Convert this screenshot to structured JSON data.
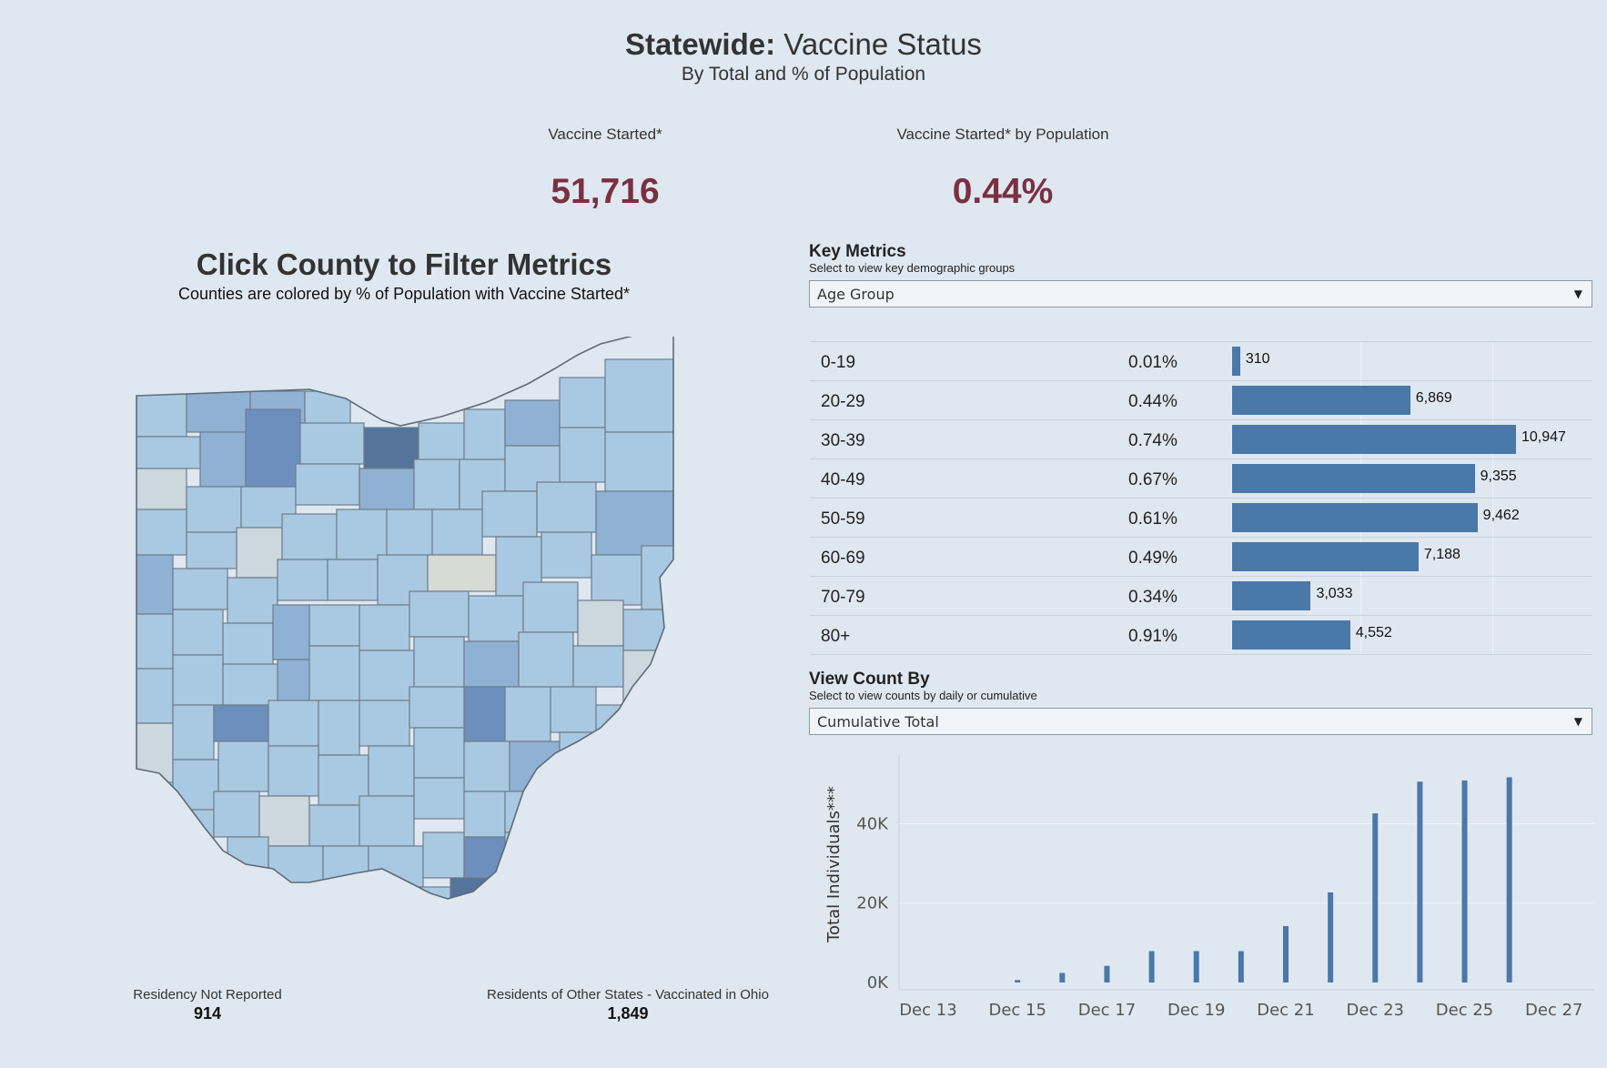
{
  "header": {
    "title_bold": "Statewide:",
    "title_rest": " Vaccine Status",
    "subtitle": "By Total and % of Population"
  },
  "kpis": {
    "started_label": "Vaccine Started*",
    "started_value": "51,716",
    "pop_label": "Vaccine Started* by Population",
    "pop_value": "0.44%"
  },
  "map": {
    "title": "Click County to Filter Metrics",
    "subtitle": "Counties are colored by % of Population with Vaccine Started*",
    "colors": {
      "light": "#a9c9e2",
      "mid": "#8fb1d4",
      "dark": "#6c8fbd",
      "darker": "#56739c",
      "gray": "#ccd7de",
      "pale": "#d8dad6"
    }
  },
  "footer": {
    "residency_label": "Residency Not Reported",
    "residency_value": "914",
    "other_label": "Residents of Other States - Vaccinated in Ohio",
    "other_value": "1,849"
  },
  "key_metrics": {
    "heading": "Key Metrics",
    "subheading": "Select to view key demographic groups",
    "dropdown_value": "Age Group",
    "rows": [
      {
        "label": "0-19",
        "pct": "0.01%",
        "count": 310,
        "count_label": "310"
      },
      {
        "label": "20-29",
        "pct": "0.44%",
        "count": 6869,
        "count_label": "6,869"
      },
      {
        "label": "30-39",
        "pct": "0.74%",
        "count": 10947,
        "count_label": "10,947"
      },
      {
        "label": "40-49",
        "pct": "0.67%",
        "count": 9355,
        "count_label": "9,355"
      },
      {
        "label": "50-59",
        "pct": "0.61%",
        "count": 9462,
        "count_label": "9,462"
      },
      {
        "label": "60-69",
        "pct": "0.49%",
        "count": 7188,
        "count_label": "7,188"
      },
      {
        "label": "70-79",
        "pct": "0.34%",
        "count": 3033,
        "count_label": "3,033"
      },
      {
        "label": "80+",
        "pct": "0.91%",
        "count": 4552,
        "count_label": "4,552"
      }
    ]
  },
  "view_count": {
    "heading": "View Count By",
    "subheading": "Select to view counts by daily or cumulative",
    "dropdown_value": "Cumulative Total"
  },
  "chart_data": {
    "type": "bar",
    "ylabel": "Total Individuals***",
    "xlabel": "",
    "ylim": [
      0,
      55000
    ],
    "y_ticks": [
      {
        "value": 0,
        "label": "0K"
      },
      {
        "value": 20000,
        "label": "20K"
      },
      {
        "value": 40000,
        "label": "40K"
      }
    ],
    "x_tick_labels": [
      "Dec 13",
      "Dec 15",
      "Dec 17",
      "Dec 19",
      "Dec 21",
      "Dec 23",
      "Dec 25",
      "Dec 27"
    ],
    "color": "#4a78a9",
    "categories": [
      "Dec 15",
      "Dec 16",
      "Dec 17",
      "Dec 18",
      "Dec 19",
      "Dec 20",
      "Dec 21",
      "Dec 22",
      "Dec 23",
      "Dec 24",
      "Dec 25",
      "Dec 26"
    ],
    "values": [
      600,
      2400,
      4200,
      7900,
      7900,
      7900,
      14200,
      22700,
      42600,
      50600,
      50900,
      51700
    ]
  }
}
